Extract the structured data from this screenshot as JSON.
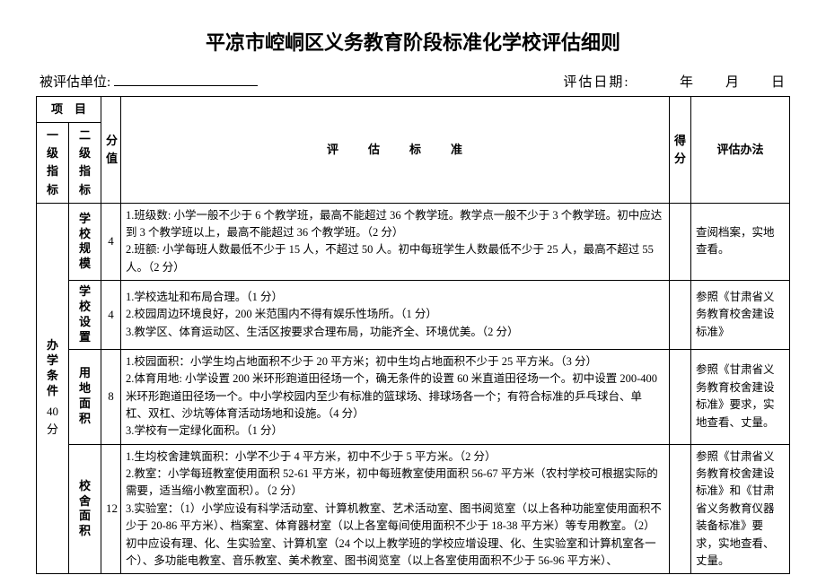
{
  "title": "平凉市崆峒区义务教育阶段标准化学校评估细则",
  "meta": {
    "unit_label": "被评估单位:",
    "date_label": "评估日期:",
    "date_suffix": "年　　月　　日"
  },
  "header": {
    "project": "项　目",
    "l1": "一级指标",
    "l2": "二级指标",
    "score": "分值",
    "criteria": "评　估　标　准",
    "got": "得分",
    "method": "评估办法"
  },
  "l1": {
    "name": "办学条件",
    "score_suffix": "40 分"
  },
  "rows": [
    {
      "l2": "学校规模",
      "score": "4",
      "criteria": "1.班级数: 小学一般不少于 6 个教学班，最高不能超过 36 个教学班。教学点一般不少于 3 个教学班。初中应达到 3 个教学班以上，最高不能超过 36 个教学班。（2 分）\n2.班额: 小学每班人数最低不少于 15 人，不超过 50 人。初中每班学生人数最低不少于 25 人，最高不超过 55 人。（2 分）",
      "method": "查阅档案，实地查看。"
    },
    {
      "l2": "学校设置",
      "score": "4",
      "criteria": "1.学校选址和布局合理。（1 分）\n2.校园周边环境良好，200 米范围内不得有娱乐性场所。（1 分）\n3.教学区、体育运动区、生活区按要求合理布局，功能齐全、环境优美。（2 分）",
      "method": "参照《甘肃省义务教育校舍建设标准》"
    },
    {
      "l2": "用地面积",
      "score": "8",
      "criteria": "1.校园面积：小学生均占地面积不少于 20 平方米；初中生均占地面积不少于 25 平方米。（3 分）\n2.体育用地: 小学设置 200 米环形跑道田径场一个，确无条件的设置 60 米直道田径场一个。初中设置 200-400 米环形跑道田径场一个。中小学校园内至少有标准的篮球场、排球场各一个；有符合标准的乒乓球台、单杠、双杠、沙坑等体育活动场地和设施。（4 分）\n3.学校有一定绿化面积。（1 分）",
      "method": "参照《甘肃省义务教育校舍建设标准》要求，实地查看、丈量。"
    },
    {
      "l2": "校舍面积",
      "score": "12",
      "criteria": "1.生均校舍建筑面积：小学不少于 4 平方米，初中不少于 5 平方米。（2 分）\n2.教室：小学每班教室使用面积 52-61 平方米，初中每班教室使用面积 56-67 平方米（农村学校可根据实际的需要，适当缩小教室面积）。（2 分）\n3.实验室：（1）小学应设有科学活动室、计算机教室、艺术活动室、图书阅览室（以上各种功能室使用面积不少于 20-86 平方米）、档案室、体育器材室（以上各室每间使用面积不少于 18-38 平方米）等专用教室。（2）初中应设有理、化、生实验室、计算机室（24 个以上教学班的学校应增设理、化、生实验室和计算机室各一个）、多功能电教室、音乐教室、美术教室、图书阅览室（以上各室使用面积不少于 56-96 平方米）、",
      "method": "参照《甘肃省义务教育校舍建设标准》和《甘肃省义务教育仪器装备标准》要求，实地查看、丈量。"
    }
  ]
}
